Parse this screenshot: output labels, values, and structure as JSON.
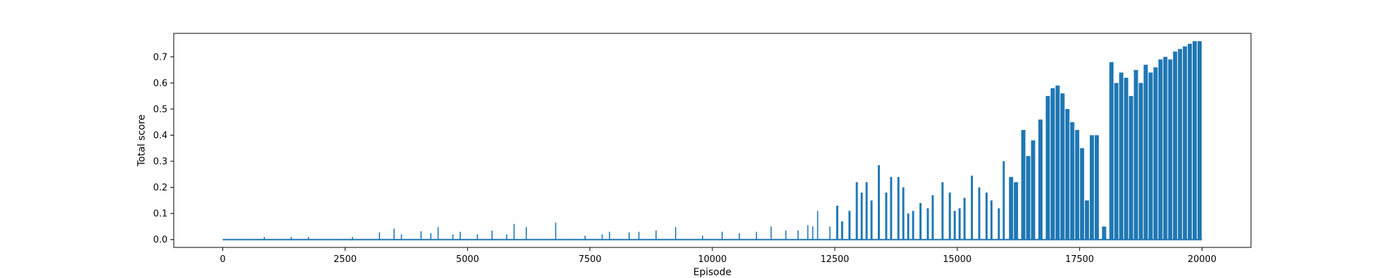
{
  "chart_data": {
    "type": "line",
    "title": "",
    "xlabel": "Episode",
    "ylabel": "Total score",
    "xlim": [
      -1000,
      21000
    ],
    "ylim": [
      -0.03,
      0.79
    ],
    "xticks": [
      0,
      2500,
      5000,
      7500,
      10000,
      12500,
      15000,
      17500,
      20000
    ],
    "yticks": [
      0.0,
      0.1,
      0.2,
      0.3,
      0.4,
      0.5,
      0.6,
      0.7
    ],
    "xtick_labels": [
      "0",
      "2500",
      "5000",
      "7500",
      "10000",
      "12500",
      "15000",
      "17500",
      "20000"
    ],
    "ytick_labels": [
      "0.0",
      "0.1",
      "0.2",
      "0.3",
      "0.4",
      "0.5",
      "0.6",
      "0.7"
    ],
    "grid": false,
    "legend": "none",
    "series": [
      {
        "color": "#1f77b4",
        "episodes_max": 20000,
        "baseline": 0.0,
        "spikes": [
          [
            850,
            0.01
          ],
          [
            1400,
            0.01
          ],
          [
            1750,
            0.01
          ],
          [
            2650,
            0.01
          ],
          [
            3200,
            0.028
          ],
          [
            3500,
            0.042
          ],
          [
            3650,
            0.02
          ],
          [
            4050,
            0.032
          ],
          [
            4250,
            0.025
          ],
          [
            4400,
            0.048
          ],
          [
            4700,
            0.02
          ],
          [
            4850,
            0.03
          ],
          [
            5200,
            0.02
          ],
          [
            5500,
            0.035
          ],
          [
            5800,
            0.02
          ],
          [
            5950,
            0.06
          ],
          [
            6200,
            0.048
          ],
          [
            6800,
            0.065
          ],
          [
            7400,
            0.015
          ],
          [
            7750,
            0.02
          ],
          [
            7900,
            0.03
          ],
          [
            8300,
            0.028
          ],
          [
            8500,
            0.03
          ],
          [
            8850,
            0.035
          ],
          [
            9250,
            0.048
          ],
          [
            9800,
            0.015
          ],
          [
            10200,
            0.03
          ],
          [
            10550,
            0.025
          ],
          [
            10900,
            0.03
          ],
          [
            11200,
            0.05
          ],
          [
            11500,
            0.035
          ],
          [
            11750,
            0.035
          ],
          [
            11950,
            0.055
          ],
          [
            12050,
            0.05
          ],
          [
            12150,
            0.11
          ],
          [
            12400,
            0.05
          ],
          [
            12550,
            0.13
          ],
          [
            12650,
            0.07
          ],
          [
            12800,
            0.11
          ],
          [
            12950,
            0.22
          ],
          [
            13050,
            0.18
          ],
          [
            13150,
            0.22
          ],
          [
            13250,
            0.15
          ],
          [
            13400,
            0.285
          ],
          [
            13550,
            0.18
          ],
          [
            13650,
            0.24
          ],
          [
            13800,
            0.24
          ],
          [
            13900,
            0.2
          ],
          [
            14000,
            0.1
          ],
          [
            14100,
            0.11
          ],
          [
            14250,
            0.14
          ],
          [
            14400,
            0.12
          ],
          [
            14500,
            0.17
          ],
          [
            14700,
            0.22
          ],
          [
            14850,
            0.18
          ],
          [
            14950,
            0.11
          ],
          [
            15050,
            0.12
          ],
          [
            15150,
            0.16
          ],
          [
            15300,
            0.245
          ],
          [
            15450,
            0.2
          ],
          [
            15600,
            0.18
          ],
          [
            15700,
            0.15
          ],
          [
            15850,
            0.12
          ],
          [
            15950,
            0.3
          ],
          [
            16100,
            0.24
          ],
          [
            16200,
            0.22
          ],
          [
            16350,
            0.42
          ],
          [
            16450,
            0.32
          ],
          [
            16550,
            0.38
          ],
          [
            16700,
            0.46
          ],
          [
            16850,
            0.55
          ],
          [
            16950,
            0.58
          ],
          [
            17050,
            0.59
          ],
          [
            17150,
            0.56
          ],
          [
            17250,
            0.5
          ],
          [
            17350,
            0.45
          ],
          [
            17450,
            0.42
          ],
          [
            17550,
            0.35
          ],
          [
            17650,
            0.15
          ],
          [
            17750,
            0.4
          ],
          [
            17850,
            0.4
          ],
          [
            18000,
            0.05
          ],
          [
            18150,
            0.68
          ],
          [
            18250,
            0.6
          ],
          [
            18350,
            0.64
          ],
          [
            18450,
            0.62
          ],
          [
            18550,
            0.55
          ],
          [
            18650,
            0.65
          ],
          [
            18750,
            0.6
          ],
          [
            18850,
            0.67
          ],
          [
            18950,
            0.64
          ],
          [
            19050,
            0.66
          ],
          [
            19150,
            0.69
          ],
          [
            19250,
            0.7
          ],
          [
            19350,
            0.69
          ],
          [
            19450,
            0.72
          ],
          [
            19550,
            0.73
          ],
          [
            19650,
            0.74
          ],
          [
            19750,
            0.75
          ],
          [
            19850,
            0.76
          ],
          [
            19950,
            0.76
          ]
        ]
      }
    ]
  }
}
